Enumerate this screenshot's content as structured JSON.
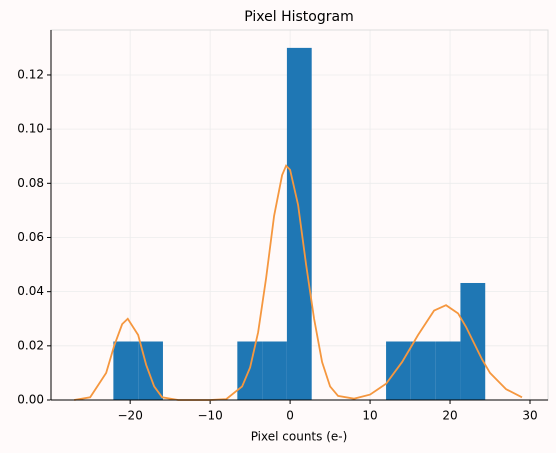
{
  "chart_data": {
    "type": "histogram",
    "title": "Pixel Histogram",
    "xlabel": "Pixel counts (e-)",
    "bins": [
      -22.1,
      -19.0,
      -15.9,
      -12.8,
      -9.7,
      -6.6,
      -3.5,
      -0.4,
      2.7,
      5.8,
      8.9,
      12.0,
      15.1,
      18.2,
      21.3,
      24.4
    ],
    "counts": [
      0.0216,
      0.0216,
      0,
      0,
      0,
      0.0216,
      0.0216,
      0.13,
      0,
      0,
      0,
      0.0216,
      0.0216,
      0.0216,
      0.0432
    ],
    "color": "#1f77b4",
    "kde": {
      "color": "#f5973f",
      "x": [
        -27,
        -25,
        -23,
        -22,
        -21,
        -20.3,
        -19,
        -18,
        -17,
        -16,
        -14,
        -10,
        -8,
        -6,
        -5,
        -4,
        -3,
        -2,
        -1,
        -0.5,
        0,
        1,
        2,
        3,
        4,
        5,
        6,
        8,
        10,
        12,
        14,
        16,
        18,
        19.5,
        21,
        22,
        23,
        24,
        25,
        27,
        29
      ],
      "values": [
        0.0,
        0.001,
        0.01,
        0.02,
        0.028,
        0.03,
        0.024,
        0.013,
        0.005,
        0.001,
        0,
        0,
        0.0003,
        0.005,
        0.012,
        0.025,
        0.045,
        0.068,
        0.083,
        0.0865,
        0.085,
        0.072,
        0.05,
        0.03,
        0.014,
        0.005,
        0.0015,
        0.0005,
        0.002,
        0.006,
        0.014,
        0.024,
        0.033,
        0.035,
        0.032,
        0.027,
        0.021,
        0.015,
        0.01,
        0.004,
        0.001
      ]
    },
    "xlim": [
      -29.9,
      32.25
    ],
    "ylim": [
      0,
      0.1366
    ],
    "xticks": [
      {
        "value": -20,
        "label": "−20"
      },
      {
        "value": -10,
        "label": "−10"
      },
      0,
      10,
      20,
      30
    ],
    "yticks": [
      {
        "value": 0,
        "label": "0.00"
      },
      {
        "value": 0.02,
        "label": "0.02"
      },
      {
        "value": 0.04,
        "label": "0.04"
      },
      {
        "value": 0.06,
        "label": "0.06"
      },
      {
        "value": 0.08,
        "label": "0.08"
      },
      {
        "value": 0.1,
        "label": "0.10"
      },
      {
        "value": 0.12,
        "label": "0.12"
      }
    ],
    "grid": true
  }
}
